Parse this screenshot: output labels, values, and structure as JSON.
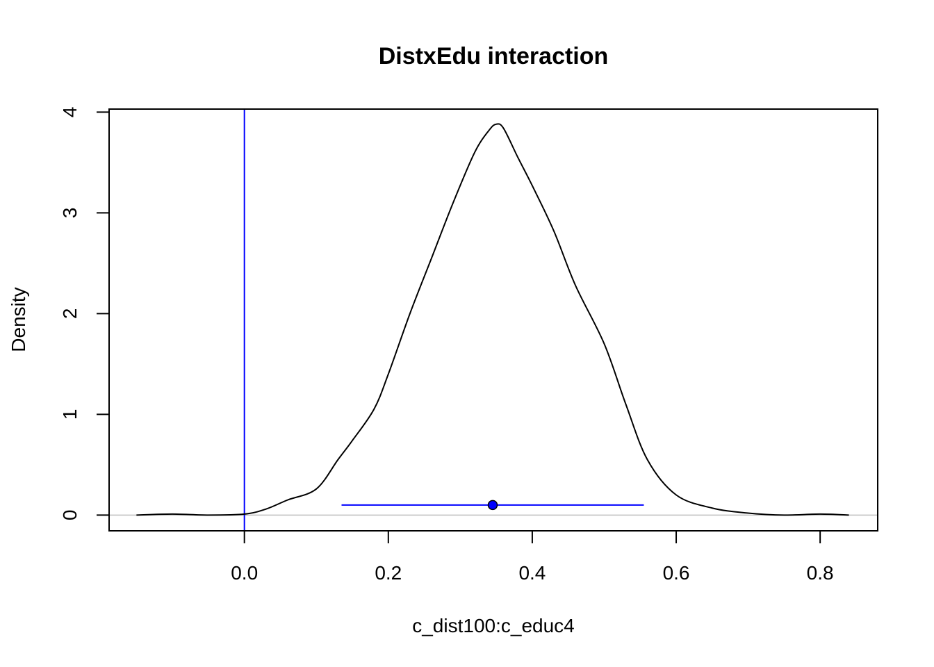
{
  "chart_data": {
    "type": "line",
    "title": "DistxEdu interaction",
    "xlabel": "c_dist100:c_educ4",
    "ylabel": "Density",
    "xlim": [
      -0.188,
      0.88
    ],
    "ylim": [
      -0.156,
      4.03
    ],
    "x_ticks": [
      0.0,
      0.2,
      0.4,
      0.6,
      0.8
    ],
    "x_tick_labels": [
      "0.0",
      "0.2",
      "0.4",
      "0.6",
      "0.8"
    ],
    "y_ticks": [
      0,
      1,
      2,
      3,
      4
    ],
    "y_tick_labels": [
      "0",
      "1",
      "2",
      "3",
      "4"
    ],
    "grid": false,
    "colors": {
      "density": "#000000",
      "reference": "#0000ff",
      "interval": "#0000ff",
      "baseline": "#bebebe"
    },
    "reference_line_x": 0.0,
    "baseline_y": 0,
    "interval": {
      "low": 0.135,
      "high": 0.555,
      "point": 0.345,
      "y": 0.1
    },
    "series": [
      {
        "x": [
          -0.15,
          -0.1,
          -0.05,
          0.0,
          0.03,
          0.06,
          0.1,
          0.13,
          0.15,
          0.18,
          0.2,
          0.23,
          0.26,
          0.29,
          0.32,
          0.34,
          0.35,
          0.36,
          0.38,
          0.4,
          0.43,
          0.46,
          0.5,
          0.53,
          0.56,
          0.6,
          0.65,
          0.7,
          0.75,
          0.8,
          0.84
        ],
        "y": [
          0.0,
          0.01,
          0.0,
          0.01,
          0.06,
          0.15,
          0.26,
          0.55,
          0.74,
          1.05,
          1.4,
          2.0,
          2.55,
          3.1,
          3.6,
          3.82,
          3.88,
          3.84,
          3.55,
          3.27,
          2.82,
          2.28,
          1.7,
          1.1,
          0.55,
          0.2,
          0.07,
          0.02,
          0.0,
          0.01,
          0.0
        ]
      }
    ]
  }
}
